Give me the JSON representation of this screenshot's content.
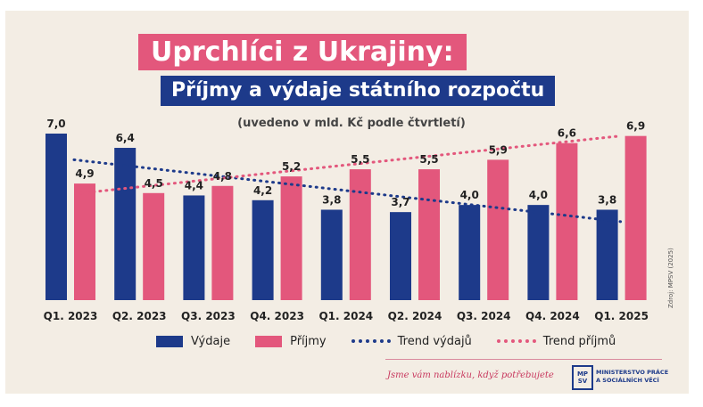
{
  "header": {
    "title": "Uprchlíci z Ukrajiny:",
    "subtitle": "Příjmy a výdaje státního rozpočtu",
    "note": "(uvedeno v mld. Kč podle čtvrtletí)"
  },
  "chart_data": {
    "type": "bar",
    "categories": [
      "Q1. 2023",
      "Q2. 2023",
      "Q3. 2023",
      "Q4. 2023",
      "Q1. 2024",
      "Q2. 2024",
      "Q3. 2024",
      "Q4. 2024",
      "Q1. 2025"
    ],
    "series": [
      {
        "name": "Výdaje",
        "values": [
          7.0,
          6.4,
          4.4,
          4.2,
          3.8,
          3.7,
          4.0,
          4.0,
          3.8
        ],
        "labels": [
          "7,0",
          "6,4",
          "4,4",
          "4,2",
          "3,8",
          "3,7",
          "4,0",
          "4,0",
          "3,8"
        ],
        "color": "#1d3a8a"
      },
      {
        "name": "Příjmy",
        "values": [
          4.9,
          4.5,
          4.8,
          5.2,
          5.5,
          5.5,
          5.9,
          6.6,
          6.9
        ],
        "labels": [
          "4,9",
          "4,5",
          "4,8",
          "5,2",
          "5,5",
          "5,5",
          "5,9",
          "6,6",
          "6,9"
        ],
        "color": "#e3577c"
      }
    ],
    "trends": [
      {
        "name": "Trend výdajů",
        "start": 5.9,
        "end": 3.3,
        "color": "#1d3a8a"
      },
      {
        "name": "Trend příjmů",
        "start": 4.5,
        "end": 6.9,
        "color": "#e3577c"
      }
    ],
    "ylim": [
      0,
      7.0
    ],
    "grid": false,
    "legend_position": "bottom"
  },
  "footer": {
    "source": "Zdroj: MPSV (2025)",
    "slogan": "Jsme vám nablízku, když potřebujete",
    "logo_text": [
      "MP",
      "SV"
    ],
    "ministry": [
      "MINISTERSTVO PRÁCE",
      "A SOCIÁLNÍCH VĚCÍ"
    ]
  }
}
